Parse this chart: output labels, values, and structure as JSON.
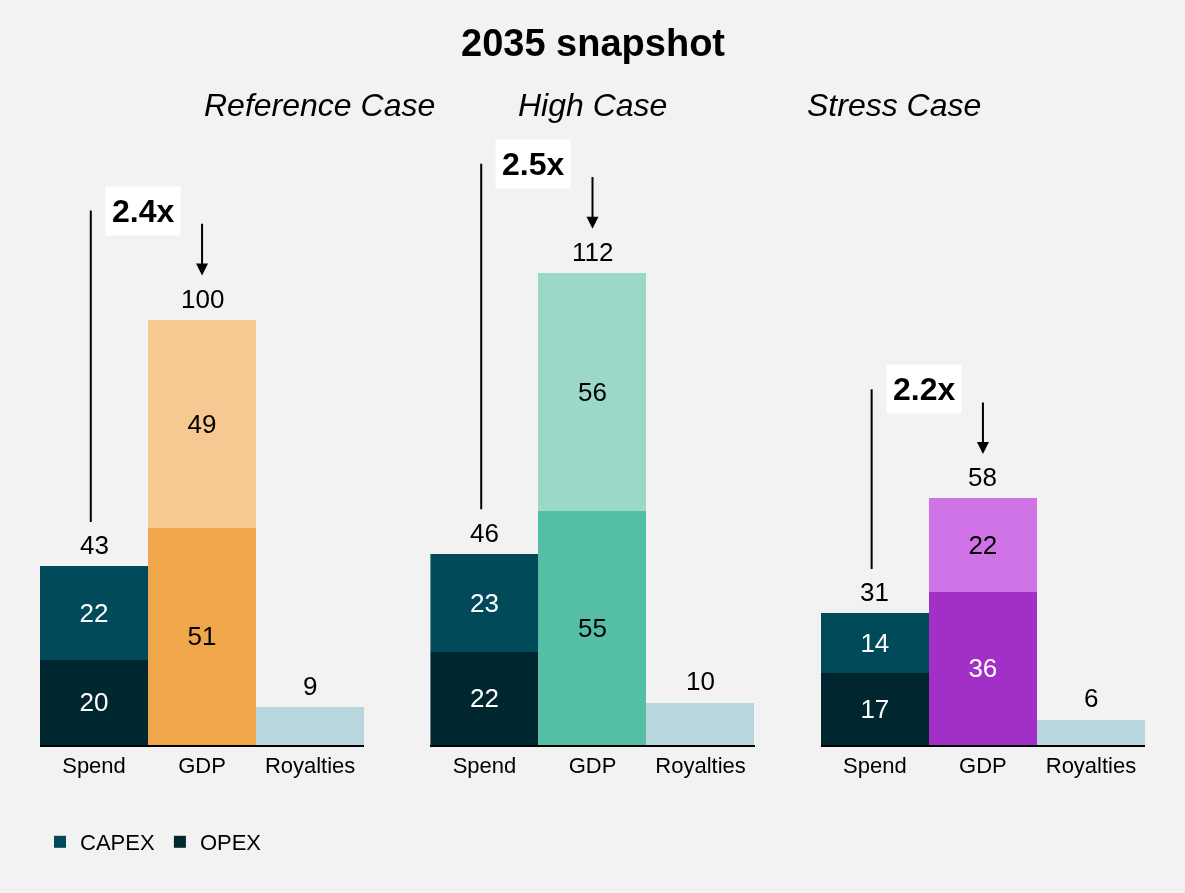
{
  "chart_data": [
    {
      "type": "bar",
      "stacked": true,
      "subtitle": "Reference Case",
      "categories": [
        "Spend",
        "GDP",
        "Royalties"
      ],
      "tick_labels": "x",
      "legend": "bottom left",
      "totals": [
        "43",
        "100",
        "9"
      ],
      "annotations": [
        "2.4x"
      ],
      "series": [
        {
          "name": "OPEX",
          "colors": [
            "#00262f",
            "#f0a64a",
            "#b8d6de"
          ],
          "values": [
            20,
            51,
            9
          ],
          "value_labels": [
            "20",
            "51",
            null
          ]
        },
        {
          "name": "CAPEX",
          "colors": [
            "#004a5a",
            "#f6c993",
            null
          ],
          "values": [
            22,
            49,
            null
          ],
          "value_labels": [
            "22",
            "49",
            null
          ]
        }
      ]
    },
    {
      "type": "bar",
      "stacked": true,
      "title": "2035 snapshot",
      "subtitle": "High Case",
      "categories": [
        "Spend",
        "GDP",
        "Royalties"
      ],
      "tick_labels": "x",
      "totals": [
        "46",
        "112",
        "10"
      ],
      "annotations": [
        "2.5x"
      ],
      "series": [
        {
          "colors": [
            "#00262f",
            "#55bfa5",
            "#b8d6de"
          ],
          "values": [
            22,
            55,
            10
          ],
          "value_labels": [
            "22",
            "55",
            null
          ]
        },
        {
          "colors": [
            "#004a5a",
            "#9bd8c8",
            null
          ],
          "values": [
            23,
            56,
            null
          ],
          "value_labels": [
            "23",
            "56",
            null
          ]
        }
      ]
    },
    {
      "type": "bar",
      "stacked": true,
      "subtitle": "Stress Case",
      "categories": [
        "Spend",
        "GDP",
        "Royalties"
      ],
      "tick_labels": "x",
      "totals": [
        "31",
        "58",
        "6"
      ],
      "annotations": [
        "2.2x"
      ],
      "series": [
        {
          "colors": [
            "#00262f",
            "#a22fc6",
            "#b8d6de"
          ],
          "values": [
            17,
            36,
            6
          ],
          "value_labels": [
            "17",
            "36",
            null
          ]
        },
        {
          "colors": [
            "#004a5a",
            "#d073e6",
            null
          ],
          "values": [
            14,
            22,
            null
          ],
          "value_labels": [
            "14",
            "22",
            null
          ]
        }
      ]
    }
  ]
}
